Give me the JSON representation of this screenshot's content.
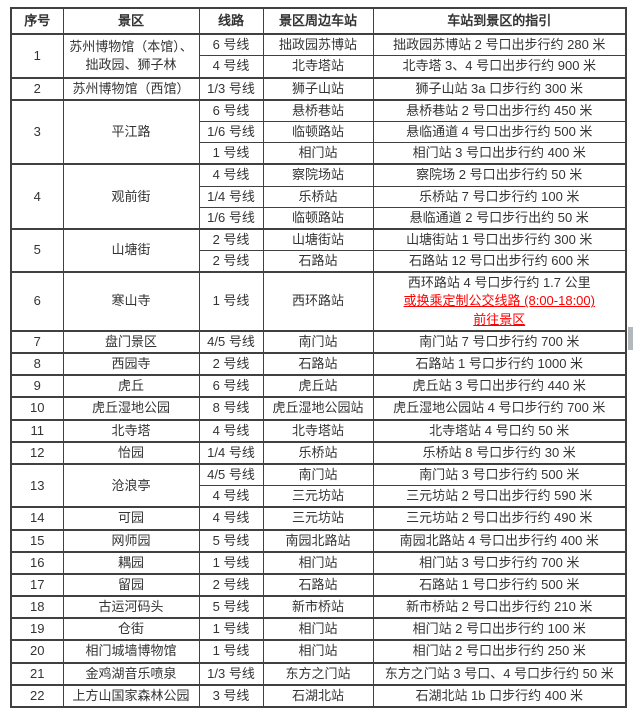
{
  "colors": {
    "accent_red": "#ff0000",
    "text": "#333333",
    "border": "#404040"
  },
  "table": {
    "headers": [
      "序号",
      "景区",
      "线路",
      "景区周边车站",
      "车站到景区的指引"
    ],
    "rows": [
      {
        "seq": "1",
        "area": "苏州博物馆（本馆）、拙政园、狮子林",
        "entries": [
          {
            "line": "6 号线",
            "station": "拙政园苏博站",
            "guide": "拙政园苏博站 2 号口出步行约 280 米"
          },
          {
            "line": "4 号线",
            "station": "北寺塔站",
            "guide": "北寺塔 3、4 号口出步行约 900 米"
          }
        ]
      },
      {
        "seq": "2",
        "area": "苏州博物馆（西馆）",
        "entries": [
          {
            "line": "1/3 号线",
            "station": "狮子山站",
            "guide": "狮子山站 3a 口步行约 300 米"
          }
        ]
      },
      {
        "seq": "3",
        "area": "平江路",
        "entries": [
          {
            "line": "6 号线",
            "station": "悬桥巷站",
            "guide": "悬桥巷站 2 号口出步行约 450 米"
          },
          {
            "line": "1/6 号线",
            "station": "临顿路站",
            "guide": "悬临通道 4 号口出步行约 500 米"
          },
          {
            "line": "1 号线",
            "station": "相门站",
            "guide": "相门站 3 号口出步行约 400 米"
          }
        ]
      },
      {
        "seq": "4",
        "area": "观前街",
        "entries": [
          {
            "line": "4 号线",
            "station": "察院场站",
            "guide": "察院场 2 号口出步行约 50 米"
          },
          {
            "line": "1/4 号线",
            "station": "乐桥站",
            "guide": "乐桥站 7 号口步行约 100 米"
          },
          {
            "line": "1/6 号线",
            "station": "临顿路站",
            "guide": "悬临通道 2 号口步行出约 50 米"
          }
        ]
      },
      {
        "seq": "5",
        "area": "山塘街",
        "entries": [
          {
            "line": "2 号线",
            "station": "山塘街站",
            "guide": "山塘街站 1 号口出步行约 300 米"
          },
          {
            "line": "2 号线",
            "station": "石路站",
            "guide": "石路站 12 号口出步行约 600 米"
          }
        ]
      },
      {
        "seq": "6",
        "area": "寒山寺",
        "entries": [
          {
            "line": "1 号线",
            "station": "西环路站",
            "guide": [
              {
                "t": "西环路站 4 号口步行约 1.7 公里",
                "red": false
              },
              {
                "t": "或换乘定制公交线路 (8:00-18:00)",
                "red": true
              },
              {
                "t": "前往景区",
                "red": true
              }
            ]
          }
        ]
      },
      {
        "seq": "7",
        "area": "盘门景区",
        "entries": [
          {
            "line": "4/5 号线",
            "station": "南门站",
            "guide": "南门站 7 号口步行约 700 米"
          }
        ]
      },
      {
        "seq": "8",
        "area": "西园寺",
        "entries": [
          {
            "line": "2 号线",
            "station": "石路站",
            "guide": "石路站 1 号口步行约 1000 米"
          }
        ]
      },
      {
        "seq": "9",
        "area": "虎丘",
        "entries": [
          {
            "line": "6 号线",
            "station": "虎丘站",
            "guide": "虎丘站 3 号口出步行约 440 米"
          }
        ]
      },
      {
        "seq": "10",
        "area": "虎丘湿地公园",
        "entries": [
          {
            "line": "8 号线",
            "station": "虎丘湿地公园站",
            "guide": "虎丘湿地公园站 4 号口步行约 700 米"
          }
        ]
      },
      {
        "seq": "11",
        "area": "北寺塔",
        "entries": [
          {
            "line": "4 号线",
            "station": "北寺塔站",
            "guide": "北寺塔站 4 号口约 50 米"
          }
        ]
      },
      {
        "seq": "12",
        "area": "怡园",
        "entries": [
          {
            "line": "1/4 号线",
            "station": "乐桥站",
            "guide": "乐桥站 8 号口步行约 30 米"
          }
        ]
      },
      {
        "seq": "13",
        "area": "沧浪亭",
        "entries": [
          {
            "line": "4/5 号线",
            "station": "南门站",
            "guide": "南门站 3 号口步行约 500 米"
          },
          {
            "line": "4 号线",
            "station": "三元坊站",
            "guide": "三元坊站 2 号口出步行约 590 米"
          }
        ]
      },
      {
        "seq": "14",
        "area": "可园",
        "entries": [
          {
            "line": "4 号线",
            "station": "三元坊站",
            "guide": "三元坊站 2 号口出步行约 490 米"
          }
        ]
      },
      {
        "seq": "15",
        "area": "网师园",
        "entries": [
          {
            "line": "5 号线",
            "station": "南园北路站",
            "guide": "南园北路站 4 号口出步行约 400 米"
          }
        ]
      },
      {
        "seq": "16",
        "area": "耦园",
        "entries": [
          {
            "line": "1 号线",
            "station": "相门站",
            "guide": "相门站 3 号口步行约 700 米"
          }
        ]
      },
      {
        "seq": "17",
        "area": "留园",
        "entries": [
          {
            "line": "2 号线",
            "station": "石路站",
            "guide": "石路站 1 号口步行约 500 米"
          }
        ]
      },
      {
        "seq": "18",
        "area": "古运河码头",
        "entries": [
          {
            "line": "5 号线",
            "station": "新市桥站",
            "guide": "新市桥站 2 号口出步行约 210 米"
          }
        ]
      },
      {
        "seq": "19",
        "area": "仓街",
        "entries": [
          {
            "line": "1 号线",
            "station": "相门站",
            "guide": "相门站 2 号口出步行约 100 米"
          }
        ]
      },
      {
        "seq": "20",
        "area": "相门城墙博物馆",
        "entries": [
          {
            "line": "1 号线",
            "station": "相门站",
            "guide": "相门站 2 号口出步行约 250 米"
          }
        ]
      },
      {
        "seq": "21",
        "area": "金鸡湖音乐喷泉",
        "entries": [
          {
            "line": "1/3 号线",
            "station": "东方之门站",
            "guide": "东方之门站 3 号口、4 号口步行约 50 米"
          }
        ]
      },
      {
        "seq": "22",
        "area": "上方山国家森林公园",
        "entries": [
          {
            "line": "3 号线",
            "station": "石湖北站",
            "guide": "石湖北站 1b 口步行约 400 米"
          }
        ]
      }
    ]
  }
}
